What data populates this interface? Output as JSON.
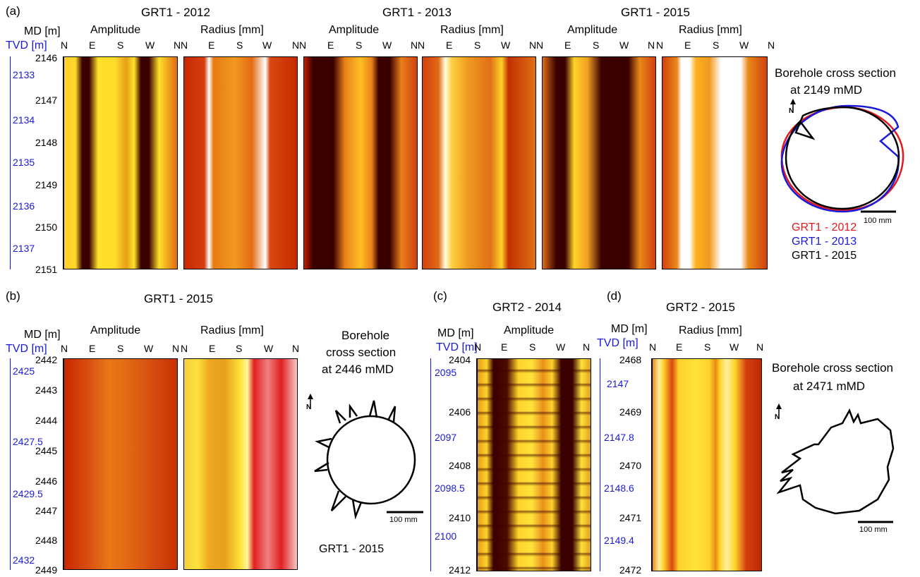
{
  "panel_a": {
    "label": "(a)",
    "titles": [
      "GRT1 - 2012",
      "GRT1 - 2013",
      "GRT1 - 2015"
    ],
    "md_label": "MD [m]",
    "tvd_label": "TVD [m]",
    "col_headers": [
      "Amplitude",
      "Radius [mm]",
      "Amplitude",
      "Radius [mm]",
      "Amplitude",
      "Radius [mm]"
    ],
    "compass": [
      "N",
      "E",
      "S",
      "W",
      "N"
    ],
    "md_ticks": [
      "2146",
      "2147",
      "2148",
      "2149",
      "2150",
      "2151"
    ],
    "tvd_ticks": [
      "2133",
      "2134",
      "2135",
      "2136",
      "2137"
    ],
    "cross_title": "Borehole cross section",
    "cross_sub": "at 2149 mMD",
    "scale": "100 mm",
    "legend": [
      {
        "label": "GRT1 - 2012",
        "color": "#e31a1c"
      },
      {
        "label": "GRT1 - 2013",
        "color": "#1a1adb"
      },
      {
        "label": "GRT1 - 2015",
        "color": "#000000"
      }
    ]
  },
  "panel_b": {
    "label": "(b)",
    "title": "GRT1 - 2015",
    "md_label": "MD [m]",
    "tvd_label": "TVD [m]",
    "col_headers": [
      "Amplitude",
      "Radius [mm]"
    ],
    "md_ticks": [
      "2442",
      "2443",
      "2444",
      "2445",
      "2446",
      "2447",
      "2448",
      "2449"
    ],
    "tvd_ticks": [
      "2425",
      "2427.5",
      "2429.5",
      "2432"
    ],
    "cross_title": "Borehole",
    "cross_sub1": "cross section",
    "cross_sub2": "at 2446 mMD",
    "scale": "100 mm",
    "legend": "GRT1 - 2015"
  },
  "panel_c": {
    "label": "(c)",
    "title": "GRT2 - 2014",
    "md_label": "MD [m]",
    "tvd_label": "TVD [m]",
    "col_header": "Amplitude",
    "md_ticks": [
      "2404",
      "2406",
      "2408",
      "2410",
      "2412"
    ],
    "tvd_ticks": [
      "2095",
      "2097",
      "2098.5",
      "2100"
    ]
  },
  "panel_d": {
    "label": "(d)",
    "title": "GRT2 - 2015",
    "md_label": "MD [m]",
    "tvd_label": "TVD [m]",
    "col_header": "Radius [mm]",
    "md_ticks": [
      "2468",
      "2469",
      "2470",
      "2471",
      "2472"
    ],
    "tvd_ticks": [
      "2147",
      "2147.8",
      "2148.6",
      "2149.4"
    ],
    "cross_title": "Borehole cross section",
    "cross_sub": "at 2471 mMD",
    "scale": "100 mm"
  },
  "colors": {
    "dark": "#3a0000",
    "red": "#c01800",
    "orange": "#e86a10",
    "yellow": "#ffd21c",
    "white": "#ffffff",
    "tvd_blue": "#1a1adb"
  }
}
